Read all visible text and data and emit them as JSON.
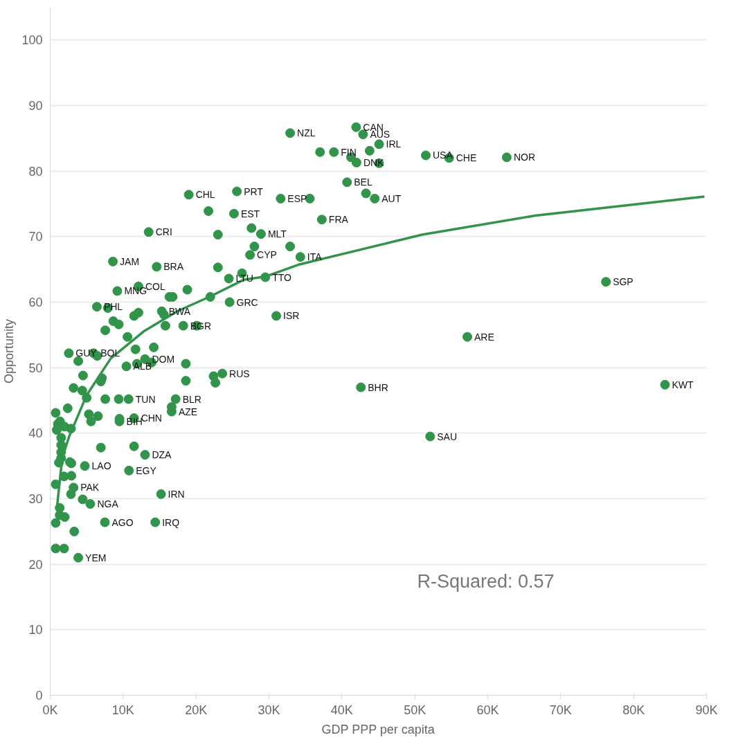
{
  "chart_data": {
    "type": "scatter",
    "xlabel": "GDP PPP per capita",
    "ylabel": "Opportunity",
    "xlim": [
      0,
      90000
    ],
    "ylim": [
      0,
      105
    ],
    "xticks": [
      {
        "value": 0,
        "label": "0K"
      },
      {
        "value": 10000,
        "label": "10K"
      },
      {
        "value": 20000,
        "label": "20K"
      },
      {
        "value": 30000,
        "label": "30K"
      },
      {
        "value": 40000,
        "label": "40K"
      },
      {
        "value": 50000,
        "label": "50K"
      },
      {
        "value": 60000,
        "label": "60K"
      },
      {
        "value": 70000,
        "label": "70K"
      },
      {
        "value": 80000,
        "label": "80K"
      },
      {
        "value": 90000,
        "label": "90K"
      }
    ],
    "yticks": [
      0,
      10,
      20,
      30,
      40,
      50,
      60,
      70,
      80,
      90,
      100
    ],
    "grid": "y",
    "series": [
      {
        "marker": "circle",
        "color": "#31944a",
        "x": [
          32900,
          41950,
          42900,
          45100,
          43800,
          37000,
          38900,
          41250,
          42000,
          45100,
          51500,
          54700,
          62600,
          40700,
          43300,
          44500,
          31600,
          35600,
          37250,
          19000,
          25600,
          21700,
          25200,
          27600,
          28900,
          23000,
          13500,
          32900,
          28000,
          27400,
          34300,
          14600,
          23000,
          26300,
          24500,
          29500,
          12100,
          16350,
          16800,
          18800,
          21950,
          24600,
          31000,
          15300,
          15600,
          15800,
          18250,
          20100,
          18600,
          18600,
          23600,
          22400,
          22650,
          17200,
          8600,
          9200,
          6400,
          7900,
          12100,
          11500,
          8650,
          9400,
          7550,
          10600,
          14200,
          11700,
          2550,
          5950,
          6450,
          3850,
          13000,
          13900,
          11900,
          10450,
          4500,
          7100,
          6950,
          3200,
          4400,
          5000,
          7550,
          9400,
          10750,
          16650,
          16650,
          2400,
          750,
          5300,
          6550,
          5600,
          9500,
          9500,
          11500,
          1350,
          1050,
          900,
          2850,
          1950,
          1500,
          1500,
          1500,
          1500,
          1200,
          6950,
          11500,
          13000,
          2700,
          2900,
          4750,
          10800,
          1900,
          2900,
          750,
          3200,
          2850,
          4450,
          5500,
          15200,
          1300,
          1300,
          2000,
          750,
          7500,
          14400,
          3300,
          750,
          1900,
          3850,
          76200,
          57200,
          84300,
          42600,
          52100
        ],
        "values": [
          85.8,
          86.7,
          85.6,
          84.1,
          83.1,
          82.9,
          82.9,
          82.1,
          81.3,
          81.2,
          82.4,
          82.0,
          82.1,
          78.3,
          76.6,
          75.8,
          75.8,
          75.8,
          72.6,
          76.4,
          76.9,
          73.9,
          73.5,
          71.3,
          70.4,
          70.3,
          70.7,
          68.5,
          68.5,
          67.2,
          66.9,
          65.4,
          65.3,
          64.4,
          63.6,
          63.8,
          62.4,
          60.8,
          60.8,
          61.9,
          60.8,
          60.0,
          57.9,
          58.6,
          58.1,
          56.4,
          56.4,
          56.4,
          50.6,
          48.0,
          49.1,
          48.7,
          47.7,
          45.2,
          66.2,
          61.7,
          59.3,
          59.1,
          58.4,
          57.9,
          57.1,
          56.6,
          55.7,
          54.7,
          53.1,
          52.8,
          52.2,
          52.2,
          51.8,
          51.0,
          51.3,
          50.8,
          50.6,
          50.2,
          48.8,
          48.4,
          47.9,
          46.9,
          46.5,
          45.4,
          45.2,
          45.2,
          45.2,
          44.0,
          43.3,
          43.8,
          43.1,
          42.9,
          42.6,
          41.8,
          42.2,
          41.8,
          42.3,
          41.8,
          41.4,
          40.5,
          40.7,
          41.0,
          39.3,
          38.2,
          37.1,
          36.2,
          35.5,
          37.8,
          38.0,
          36.7,
          35.6,
          35.4,
          35.0,
          34.3,
          33.4,
          33.5,
          32.2,
          31.7,
          30.7,
          29.9,
          29.2,
          30.7,
          28.6,
          27.5,
          27.2,
          26.3,
          26.4,
          26.4,
          25.0,
          22.4,
          22.4,
          21.0,
          63.1,
          54.7,
          47.4,
          47.0,
          39.5
        ]
      },
      {
        "type": "line",
        "color": "#31944a",
        "x": [
          900,
          1650,
          2600,
          5000,
          8300,
          12900,
          17400,
          22000,
          26500,
          29500,
          34000,
          51000,
          66500,
          89700
        ],
        "values": [
          28.4,
          36.2,
          39.5,
          45.8,
          51.4,
          55.6,
          58.6,
          60.9,
          63.4,
          63.9,
          65.7,
          70.3,
          73.2,
          76.1
        ]
      }
    ],
    "annotations": [
      {
        "text": "NZL",
        "x": 32900,
        "y": 85.8
      },
      {
        "text": "CAN",
        "x": 41950,
        "y": 86.7
      },
      {
        "text": "AUS",
        "x": 42900,
        "y": 85.6
      },
      {
        "text": "IRL",
        "x": 45100,
        "y": 84.1
      },
      {
        "text": "FIN",
        "x": 38900,
        "y": 82.9
      },
      {
        "text": "DNK",
        "x": 42000,
        "y": 81.3
      },
      {
        "text": "USA",
        "x": 51500,
        "y": 82.4
      },
      {
        "text": "CHE",
        "x": 54700,
        "y": 82.0
      },
      {
        "text": "NOR",
        "x": 62600,
        "y": 82.1
      },
      {
        "text": "BEL",
        "x": 40700,
        "y": 78.3
      },
      {
        "text": "AUT",
        "x": 44500,
        "y": 75.8
      },
      {
        "text": "ESP",
        "x": 31600,
        "y": 75.8
      },
      {
        "text": "FRA",
        "x": 37250,
        "y": 72.6
      },
      {
        "text": "CHL",
        "x": 19000,
        "y": 76.4
      },
      {
        "text": "PRT",
        "x": 25600,
        "y": 76.9
      },
      {
        "text": "EST",
        "x": 25200,
        "y": 73.5
      },
      {
        "text": "MLT",
        "x": 28900,
        "y": 70.4
      },
      {
        "text": "CRI",
        "x": 13500,
        "y": 70.7
      },
      {
        "text": "CYP",
        "x": 27400,
        "y": 67.2
      },
      {
        "text": "ITA",
        "x": 34300,
        "y": 66.9
      },
      {
        "text": "BRA",
        "x": 14600,
        "y": 65.4
      },
      {
        "text": "LTU",
        "x": 24500,
        "y": 63.6
      },
      {
        "text": "TTO",
        "x": 29500,
        "y": 63.8
      },
      {
        "text": "COL",
        "x": 12100,
        "y": 62.4
      },
      {
        "text": "GRC",
        "x": 24600,
        "y": 60.0
      },
      {
        "text": "ISR",
        "x": 31000,
        "y": 57.9
      },
      {
        "text": "BWA",
        "x": 15300,
        "y": 58.6
      },
      {
        "text": "BGR",
        "x": 18250,
        "y": 56.4
      },
      {
        "text": "RUS",
        "x": 23600,
        "y": 49.1
      },
      {
        "text": "BLR",
        "x": 17200,
        "y": 45.2
      },
      {
        "text": "JAM",
        "x": 8600,
        "y": 66.2
      },
      {
        "text": "MNG",
        "x": 9200,
        "y": 61.7
      },
      {
        "text": "PHL",
        "x": 6400,
        "y": 59.3
      },
      {
        "text": "GUY",
        "x": 2550,
        "y": 52.2
      },
      {
        "text": "BOL",
        "x": 5950,
        "y": 52.2
      },
      {
        "text": "DOM",
        "x": 13000,
        "y": 51.3
      },
      {
        "text": "ALB",
        "x": 10450,
        "y": 50.2
      },
      {
        "text": "TUN",
        "x": 10750,
        "y": 45.2
      },
      {
        "text": "AZE",
        "x": 16650,
        "y": 43.3
      },
      {
        "text": "BIH",
        "x": 9500,
        "y": 41.8
      },
      {
        "text": "CHN",
        "x": 11500,
        "y": 42.3
      },
      {
        "text": "DZA",
        "x": 13000,
        "y": 36.7
      },
      {
        "text": "LAO",
        "x": 4750,
        "y": 35.0
      },
      {
        "text": "EGY",
        "x": 10800,
        "y": 34.3
      },
      {
        "text": "PAK",
        "x": 3200,
        "y": 31.7
      },
      {
        "text": "NGA",
        "x": 5500,
        "y": 29.2
      },
      {
        "text": "IRN",
        "x": 15200,
        "y": 30.7
      },
      {
        "text": "AGO",
        "x": 7500,
        "y": 26.4
      },
      {
        "text": "IRQ",
        "x": 14400,
        "y": 26.4
      },
      {
        "text": "YEM",
        "x": 3850,
        "y": 21.0
      },
      {
        "text": "SGP",
        "x": 76200,
        "y": 63.1
      },
      {
        "text": "ARE",
        "x": 57200,
        "y": 54.7
      },
      {
        "text": "KWT",
        "x": 84300,
        "y": 47.4
      },
      {
        "text": "BHR",
        "x": 42600,
        "y": 47.0
      },
      {
        "text": "SAU",
        "x": 52100,
        "y": 39.5
      },
      "R-Squared: 0.57"
    ]
  }
}
